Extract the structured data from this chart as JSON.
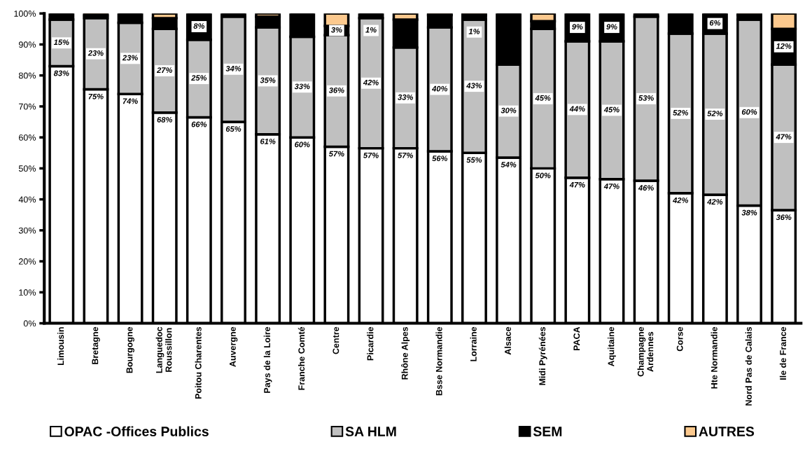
{
  "chart_data": {
    "type": "bar",
    "stacked": true,
    "legend": "bottom",
    "grid": false,
    "categories": [
      "Limousin",
      "Bretagne",
      "Bourgogne",
      "Languedoc\nRoussillon",
      "Poitou Charentes",
      "Auvergne",
      "Pays de la Loire",
      "Franche Comté",
      "Centre",
      "Picardie",
      "Rhône Alpes",
      "Bsse Normandie",
      "Lorraine",
      "Alsace",
      "Midi Pyrénées",
      "PACA",
      "Aquitaine",
      "Champagne\nArdennes",
      "Corse",
      "Hte Normandie",
      "Nord Pas de Calais",
      "Ile de France"
    ],
    "ylim": [
      0,
      100
    ],
    "yticks": [
      {
        "value": 0,
        "label": "0%"
      },
      {
        "value": 10,
        "label": "10%"
      },
      {
        "value": 20,
        "label": "20%"
      },
      {
        "value": 30,
        "label": "30%"
      },
      {
        "value": 40,
        "label": "40%"
      },
      {
        "value": 50,
        "label": "50%"
      },
      {
        "value": 60,
        "label": "60%"
      },
      {
        "value": 70,
        "label": "70%"
      },
      {
        "value": 80,
        "label": "80%"
      },
      {
        "value": 90,
        "label": "90%"
      },
      {
        "value": 100,
        "label": "100%"
      }
    ],
    "series": [
      {
        "name": "OPAC -Offices Publics",
        "color": "#ffffff",
        "values": [
          83,
          75.5,
          74,
          68,
          66.5,
          65,
          61,
          60,
          57,
          56.5,
          56.5,
          55.5,
          55,
          53.5,
          50,
          47,
          46.5,
          46,
          42,
          41.5,
          38,
          36.5
        ],
        "value_labels": [
          "83%",
          "75%",
          "74%",
          "68%",
          "66%",
          "65%",
          "61%",
          "60%",
          "57%",
          "57%",
          "57%",
          "56%",
          "55%",
          "54%",
          "50%",
          "47%",
          "47%",
          "46%",
          "42%",
          "42%",
          "38%",
          "36%"
        ]
      },
      {
        "name": "SA HLM",
        "color": "#c0c0c0",
        "values": [
          15,
          23,
          23,
          27,
          25,
          34,
          34.5,
          32.5,
          36,
          42,
          32.5,
          40,
          43,
          30,
          45,
          44,
          44.5,
          53,
          51.5,
          52,
          60,
          47
        ],
        "value_labels": [
          "15%",
          "23%",
          "23%",
          "27%",
          "25%",
          "34%",
          "35%",
          "33%",
          "36%",
          "42%",
          "33%",
          "40%",
          "43%",
          "30%",
          "45%",
          "44%",
          "45%",
          "53%",
          "52%",
          "52%",
          "60%",
          "47%"
        ]
      },
      {
        "name": "SEM",
        "color": "#000000",
        "values": [
          2,
          0.8,
          3,
          3.5,
          8.5,
          1,
          3.5,
          7.5,
          3,
          1.5,
          9,
          4,
          1.5,
          16.5,
          2.5,
          9,
          9,
          1,
          6.5,
          6.5,
          1.5,
          11.5
        ],
        "value_labels": [
          null,
          null,
          null,
          null,
          "8%",
          null,
          null,
          null,
          "3%",
          "1%",
          null,
          null,
          "1%",
          null,
          null,
          "9%",
          "9%",
          null,
          null,
          "6%",
          null,
          "12%"
        ]
      },
      {
        "name": "AUTRES",
        "color": "#fcc98e",
        "values": [
          0,
          0.7,
          0,
          1.5,
          0,
          0,
          1,
          0,
          4,
          0,
          2,
          0.5,
          0.5,
          0,
          2.5,
          0,
          0,
          0,
          0,
          0,
          0.5,
          5
        ]
      }
    ]
  }
}
